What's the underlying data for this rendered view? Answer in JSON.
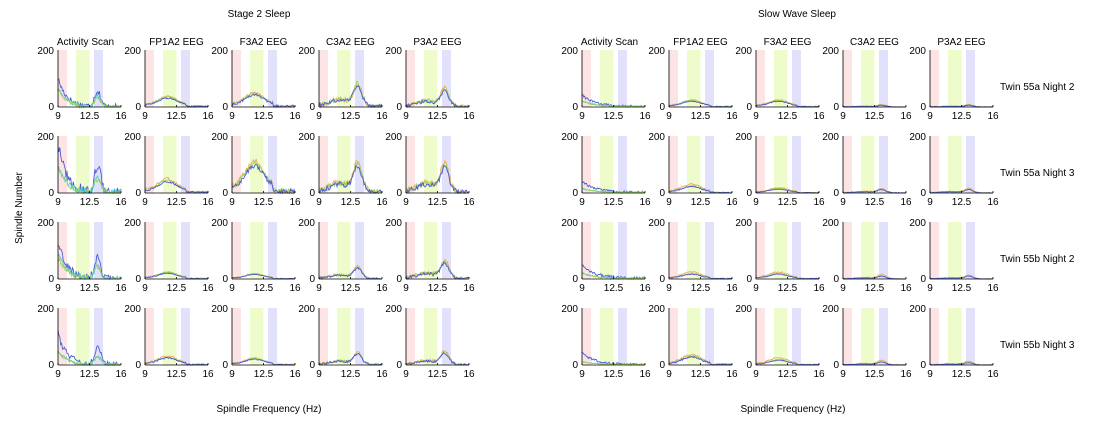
{
  "figure": {
    "ylabel": "Spindle Number",
    "panel_titles": [
      "Stage 2 Sleep",
      "Slow Wave Sleep"
    ],
    "xlabels": [
      "Spindle Frequency (Hz)",
      "Spindle Frequency (Hz)"
    ],
    "row_labels": [
      "Twin 55a Night 2",
      "Twin 55a Night 3",
      "Twin 55b Night 2",
      "Twin 55b Night 3"
    ],
    "column_titles": [
      "Activity Scan",
      "FP1A2 EEG",
      "F3A2 EEG",
      "C3A2 EEG",
      "P3A2 EEG"
    ]
  },
  "chart_data": [
    {
      "type": "line",
      "title": "Stage 2 Sleep",
      "xlabel": "Spindle Frequency (Hz)",
      "ylabel": "Spindle Number",
      "xlim": [
        9,
        16
      ],
      "ylim": [
        0,
        200
      ],
      "xticks": [
        "9",
        "12.5",
        "16"
      ],
      "yticks": [
        "0",
        "200"
      ],
      "bands": [
        {
          "from": 9,
          "to": 10,
          "color": "#fde4e4"
        },
        {
          "from": 11,
          "to": 12.5,
          "color": "#eefccc"
        },
        {
          "from": 13,
          "to": 14,
          "color": "#e1e1fb"
        }
      ],
      "series_colors": [
        "#4b5bd4",
        "#46c8d8",
        "#9bd45a",
        "#f0a860"
      ],
      "rows": [
        "Twin 55a Night 2",
        "Twin 55a Night 3",
        "Twin 55b Night 2",
        "Twin 55b Night 3"
      ],
      "columns": [
        "Activity Scan",
        "FP1A2 EEG",
        "F3A2 EEG",
        "C3A2 EEG",
        "P3A2 EEG"
      ],
      "peak_values": [
        [
          [
            100,
            70
          ],
          [
            30,
            28
          ],
          [
            40,
            38
          ],
          [
            70,
            75
          ],
          [
            60,
            55
          ]
        ],
        [
          [
            175,
            100
          ],
          [
            40,
            35
          ],
          [
            90,
            85
          ],
          [
            100,
            95
          ],
          [
            95,
            90
          ]
        ],
        [
          [
            130,
            90
          ],
          [
            20,
            18
          ],
          [
            15,
            14
          ],
          [
            40,
            38
          ],
          [
            60,
            55
          ]
        ],
        [
          [
            110,
            55
          ],
          [
            25,
            22
          ],
          [
            20,
            18
          ],
          [
            40,
            38
          ],
          [
            45,
            40
          ]
        ]
      ]
    },
    {
      "type": "line",
      "title": "Slow Wave Sleep",
      "xlabel": "Spindle Frequency (Hz)",
      "ylabel": "Spindle Number",
      "xlim": [
        9,
        16
      ],
      "ylim": [
        0,
        200
      ],
      "xticks": [
        "9",
        "12.5",
        "16"
      ],
      "yticks": [
        "0",
        "200"
      ],
      "bands": [
        {
          "from": 9,
          "to": 10,
          "color": "#fde4e4"
        },
        {
          "from": 11,
          "to": 12.5,
          "color": "#eefccc"
        },
        {
          "from": 13,
          "to": 14,
          "color": "#e1e1fb"
        }
      ],
      "series_colors": [
        "#4b5bd4",
        "#46c8d8",
        "#9bd45a",
        "#f0a860"
      ],
      "rows": [
        "Twin 55a Night 2",
        "Twin 55a Night 3",
        "Twin 55b Night 2",
        "Twin 55b Night 3"
      ],
      "columns": [
        "Activity Scan",
        "FP1A2 EEG",
        "F3A2 EEG",
        "C3A2 EEG",
        "P3A2 EEG"
      ],
      "peak_values": [
        [
          [
            40,
            20
          ],
          [
            20,
            18
          ],
          [
            20,
            18
          ],
          [
            8,
            6
          ],
          [
            8,
            6
          ]
        ],
        [
          [
            40,
            15
          ],
          [
            25,
            20
          ],
          [
            15,
            12
          ],
          [
            15,
            12
          ],
          [
            15,
            12
          ]
        ],
        [
          [
            50,
            20
          ],
          [
            20,
            15
          ],
          [
            20,
            15
          ],
          [
            15,
            10
          ],
          [
            12,
            10
          ]
        ],
        [
          [
            40,
            10
          ],
          [
            30,
            25
          ],
          [
            20,
            15
          ],
          [
            15,
            10
          ],
          [
            12,
            8
          ]
        ]
      ]
    }
  ]
}
